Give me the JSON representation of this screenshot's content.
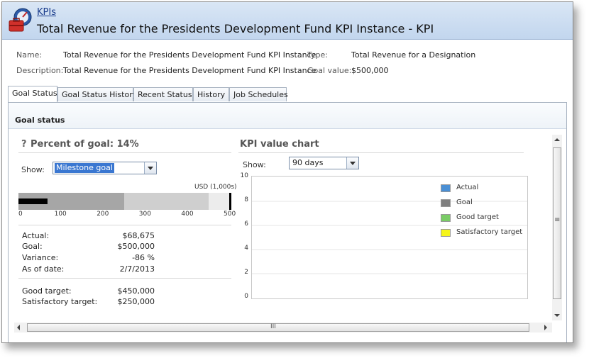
{
  "header": {
    "breadcrumb": "KPIs",
    "title": "Total Revenue for the Presidents Development Fund KPI Instance - KPI"
  },
  "meta": {
    "name_label": "Name:",
    "name_value": "Total Revenue for the Presidents Development Fund KPI Instance",
    "description_label": "Description:",
    "description_value": "Total Revenue for the Presidents Development Fund KPI Instance",
    "type_label": "Type:",
    "type_value": "Total Revenue for a Designation",
    "goal_label": "Goal value:",
    "goal_value": "$500,000"
  },
  "tabs": [
    {
      "label": "Goal Status",
      "active": true
    },
    {
      "label": "Goal Status History",
      "active": false
    },
    {
      "label": "Recent Status",
      "active": false
    },
    {
      "label": "History",
      "active": false
    },
    {
      "label": "Job Schedules",
      "active": false
    }
  ],
  "goal_status": {
    "section_title": "Goal status",
    "help_glyph": "?",
    "percent_title": "Percent of goal: 14%",
    "show_label": "Show:",
    "show_value": "Milestone goal",
    "unit_label": "USD (1,000s)",
    "bar": {
      "max": 500,
      "actual": 68.675,
      "satisfactory": 250,
      "good": 450,
      "goal": 500,
      "ticks": [
        "0",
        "100",
        "200",
        "300",
        "400",
        "500"
      ]
    },
    "stats": [
      {
        "label": "Actual:",
        "value": "$68,675"
      },
      {
        "label": "Goal:",
        "value": "$500,000"
      },
      {
        "label": "Variance:",
        "value": "-86 %"
      },
      {
        "label": "As of date:",
        "value": "2/7/2013"
      }
    ],
    "targets": [
      {
        "label": "Good target:",
        "value": "$450,000"
      },
      {
        "label": "Satisfactory target:",
        "value": "$250,000"
      }
    ]
  },
  "kpi_chart": {
    "title": "KPI value chart",
    "show_label": "Show:",
    "show_value": "90 days",
    "y_ticks": [
      "10",
      "8",
      "6",
      "4",
      "2",
      "0"
    ],
    "legend": [
      {
        "label": "Actual",
        "color": "#4a8fd4"
      },
      {
        "label": "Goal",
        "color": "#7f7f7f"
      },
      {
        "label": "Good target",
        "color": "#7acc66"
      },
      {
        "label": "Satisfactory target",
        "color": "#f5f51a"
      }
    ]
  },
  "scrollbar": {
    "hscroll_grip": "III",
    "vscroll_grip": "≡"
  },
  "chart_data": {
    "type": "line",
    "title": "KPI value chart",
    "ylim": [
      0,
      10
    ],
    "y_ticks": [
      0,
      2,
      4,
      6,
      8,
      10
    ],
    "series": [
      {
        "name": "Actual",
        "values": []
      },
      {
        "name": "Goal",
        "values": []
      },
      {
        "name": "Good target",
        "values": []
      },
      {
        "name": "Satisfactory target",
        "values": []
      }
    ],
    "grid": true,
    "legend_position": "top-right"
  }
}
